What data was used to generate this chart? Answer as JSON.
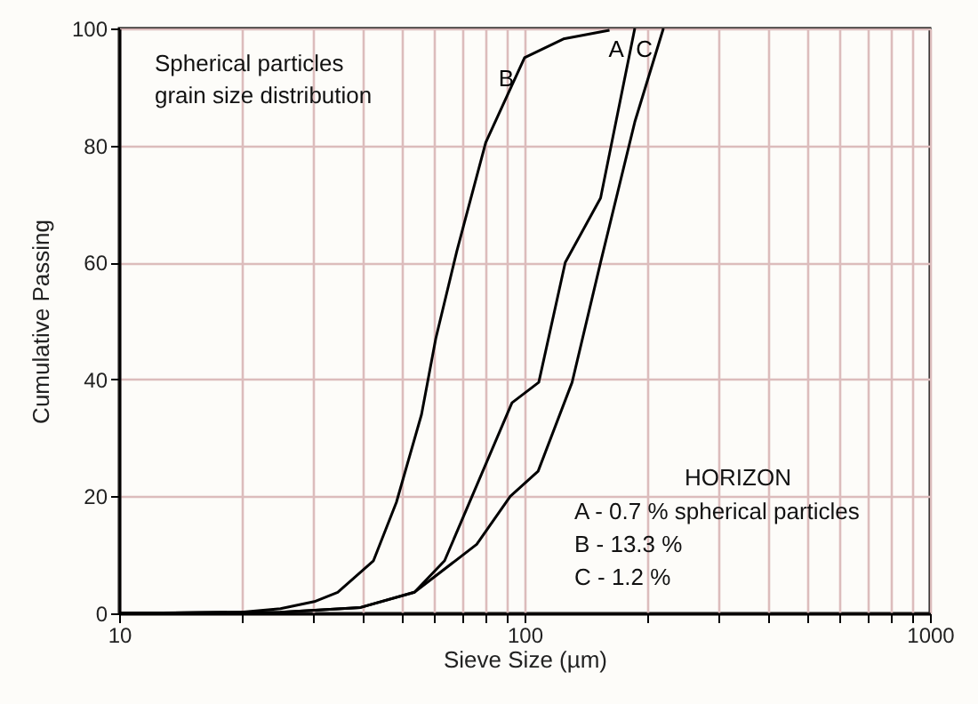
{
  "chart_data": {
    "type": "line",
    "xlabel": "Sieve Size (µm)",
    "ylabel": "Cumulative Passing",
    "log": "x",
    "grid": true,
    "marker": "none",
    "line_style": "solid",
    "xlim": [
      10,
      1000
    ],
    "xticks": [
      10,
      {
        "value": 20,
        "label": null
      },
      {
        "value": 30,
        "label": null
      },
      {
        "value": 40,
        "label": null
      },
      {
        "value": 50,
        "label": null
      },
      {
        "value": 60,
        "label": null
      },
      {
        "value": 70,
        "label": null
      },
      {
        "value": 80,
        "label": null
      },
      {
        "value": 90,
        "label": null
      },
      100,
      {
        "value": 200,
        "label": null
      },
      {
        "value": 300,
        "label": null
      },
      {
        "value": 400,
        "label": null
      },
      {
        "value": 500,
        "label": null
      },
      {
        "value": 600,
        "label": null
      },
      {
        "value": 700,
        "label": null
      },
      {
        "value": 800,
        "label": null
      },
      {
        "value": 900,
        "label": null
      },
      1000
    ],
    "ylim": [
      0,
      100
    ],
    "yticks": [
      0,
      20,
      40,
      60,
      80,
      100
    ],
    "series": [
      {
        "name": "B",
        "color": "#000000",
        "x": [
          10,
          20,
          25,
          30.3,
          34.6,
          42.4,
          48.3,
          55.7,
          60.4,
          68.1,
          80.2,
          100,
          124.7,
          162
        ],
        "values": [
          0,
          0.2,
          0.8,
          2,
          3.6,
          9,
          19,
          34,
          47,
          62,
          80.5,
          95,
          98.2,
          99.7
        ]
      },
      {
        "name": "A",
        "color": "#000000",
        "x": [
          10,
          25,
          39.4,
          53.5,
          63.5,
          93.1,
          108.4,
          126,
          154,
          187
        ],
        "values": [
          0,
          0.2,
          1,
          3.6,
          9,
          36,
          39.5,
          60,
          71,
          100
        ]
      },
      {
        "name": "C",
        "color": "#000000",
        "x": [
          10,
          25,
          39.4,
          53.5,
          76.2,
          92.2,
          108,
          131,
          154,
          187,
          220
        ],
        "values": [
          0,
          0.2,
          1,
          3.6,
          11.8,
          20,
          24.3,
          39.5,
          60,
          84,
          100
        ]
      }
    ],
    "annotations": [
      "Spherical particles\ngrain size distribution",
      "HORIZON",
      "A - 0.7 % spherical particles",
      "B - 13.3 %",
      "C - 1.2 %"
    ]
  }
}
